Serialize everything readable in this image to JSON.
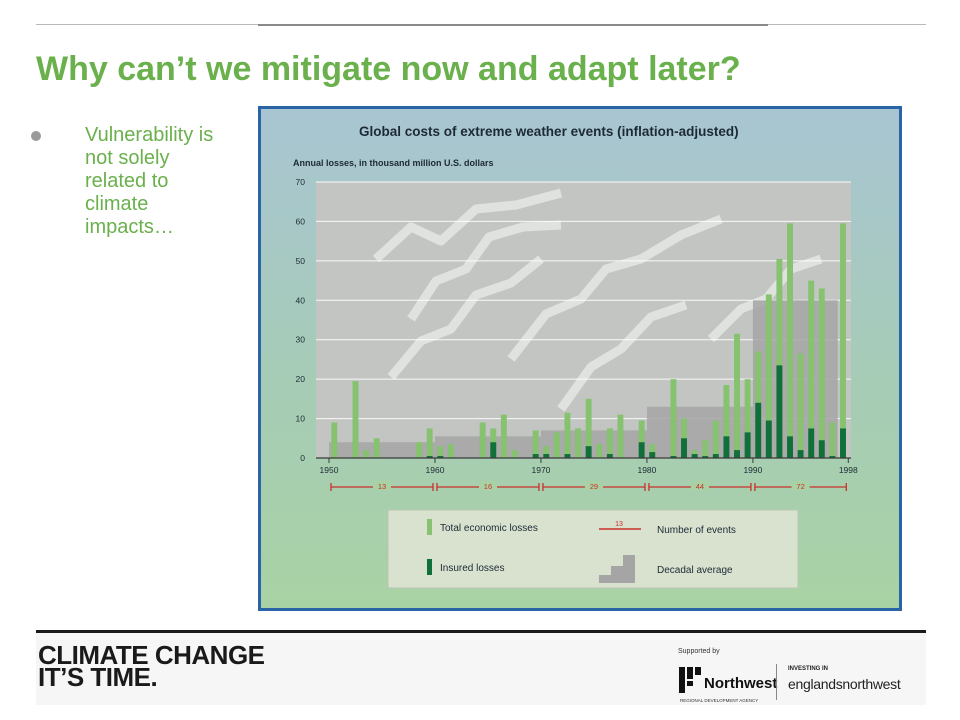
{
  "slide": {
    "title": "Why can’t we mitigate now and adapt later?",
    "bullet": "Vulnerability is not solely related to climate impacts…"
  },
  "chart_data": {
    "type": "bar",
    "title": "Global costs of extreme weather events (inflation-adjusted)",
    "ylabel": "Annual losses, in thousand million U.S. dollars",
    "ylim": [
      0,
      70
    ],
    "yticks": [
      0,
      10,
      20,
      30,
      40,
      50,
      60,
      70
    ],
    "xlim": [
      1950,
      1998
    ],
    "xtick_labels": [
      "1950",
      "1960",
      "1970",
      "1980",
      "1990",
      "1998"
    ],
    "years": [
      1950,
      1951,
      1952,
      1953,
      1954,
      1955,
      1956,
      1957,
      1958,
      1959,
      1960,
      1961,
      1962,
      1963,
      1964,
      1965,
      1966,
      1967,
      1968,
      1969,
      1970,
      1971,
      1972,
      1973,
      1974,
      1975,
      1976,
      1977,
      1978,
      1979,
      1980,
      1981,
      1982,
      1983,
      1984,
      1985,
      1986,
      1987,
      1988,
      1989,
      1990,
      1991,
      1992,
      1993,
      1994,
      1995,
      1996,
      1997,
      1998
    ],
    "series": [
      {
        "name": "Total economic losses",
        "color": "#86c26f",
        "values": [
          9,
          0,
          19.5,
          2,
          5,
          0,
          0,
          0,
          4,
          7.5,
          3,
          3.5,
          0,
          0,
          9,
          7.5,
          11,
          2,
          0,
          7,
          3,
          6.5,
          11.5,
          7.5,
          15,
          3.5,
          7.5,
          11,
          0,
          9.5,
          3.5,
          0,
          20,
          10,
          2,
          4.5,
          9.5,
          18.5,
          31.5,
          20,
          27,
          41.5,
          50.5,
          59.5,
          26.5,
          45,
          43,
          9,
          59.5
        ]
      },
      {
        "name": "Insured losses",
        "color": "#11703a",
        "values": [
          0,
          0,
          0,
          0,
          0,
          0,
          0,
          0,
          0,
          0.5,
          0.5,
          0,
          0,
          0,
          0,
          4,
          0,
          0,
          0,
          1,
          1,
          0,
          1,
          0,
          3,
          0,
          1,
          0,
          0,
          4,
          1.5,
          0,
          0.5,
          5,
          1,
          0.5,
          1,
          5.5,
          2,
          6.5,
          14,
          9.5,
          23.5,
          5.5,
          2,
          7.5,
          4.5,
          0.5,
          7.5
        ]
      }
    ],
    "decadal_average": [
      {
        "from": 1950,
        "to": 1960,
        "value": 4
      },
      {
        "from": 1960,
        "to": 1970,
        "value": 5.5
      },
      {
        "from": 1970,
        "to": 1980,
        "value": 7
      },
      {
        "from": 1980,
        "to": 1990,
        "value": 13
      },
      {
        "from": 1990,
        "to": 1998,
        "value": 40
      }
    ],
    "decadal_average_color": "#a5a5a5",
    "number_of_events": [
      {
        "from": 1950,
        "to": 1959,
        "count": "13"
      },
      {
        "from": 1960,
        "to": 1969,
        "count": "16"
      },
      {
        "from": 1970,
        "to": 1979,
        "count": "29"
      },
      {
        "from": 1980,
        "to": 1989,
        "count": "44"
      },
      {
        "from": 1990,
        "to": 1998,
        "count": "72"
      }
    ],
    "events_color": "#c8302c",
    "legend": {
      "total": "Total economic losses",
      "insured": "Insured losses",
      "events": "Number of events",
      "events_sample": "13",
      "decadal": "Decadal average"
    },
    "background_color": "#9cc4b0"
  },
  "footer": {
    "logo_line1": "CLIMATE CHANGE",
    "logo_line2": "IT’S TIME.",
    "supported_by": "Supported by",
    "agency_name": "Northwest",
    "agency_sub": "REGIONAL DEVELOPMENT AGENCY",
    "investing_label": "INVESTING IN",
    "investing_brand": "englandsnorthwest"
  }
}
